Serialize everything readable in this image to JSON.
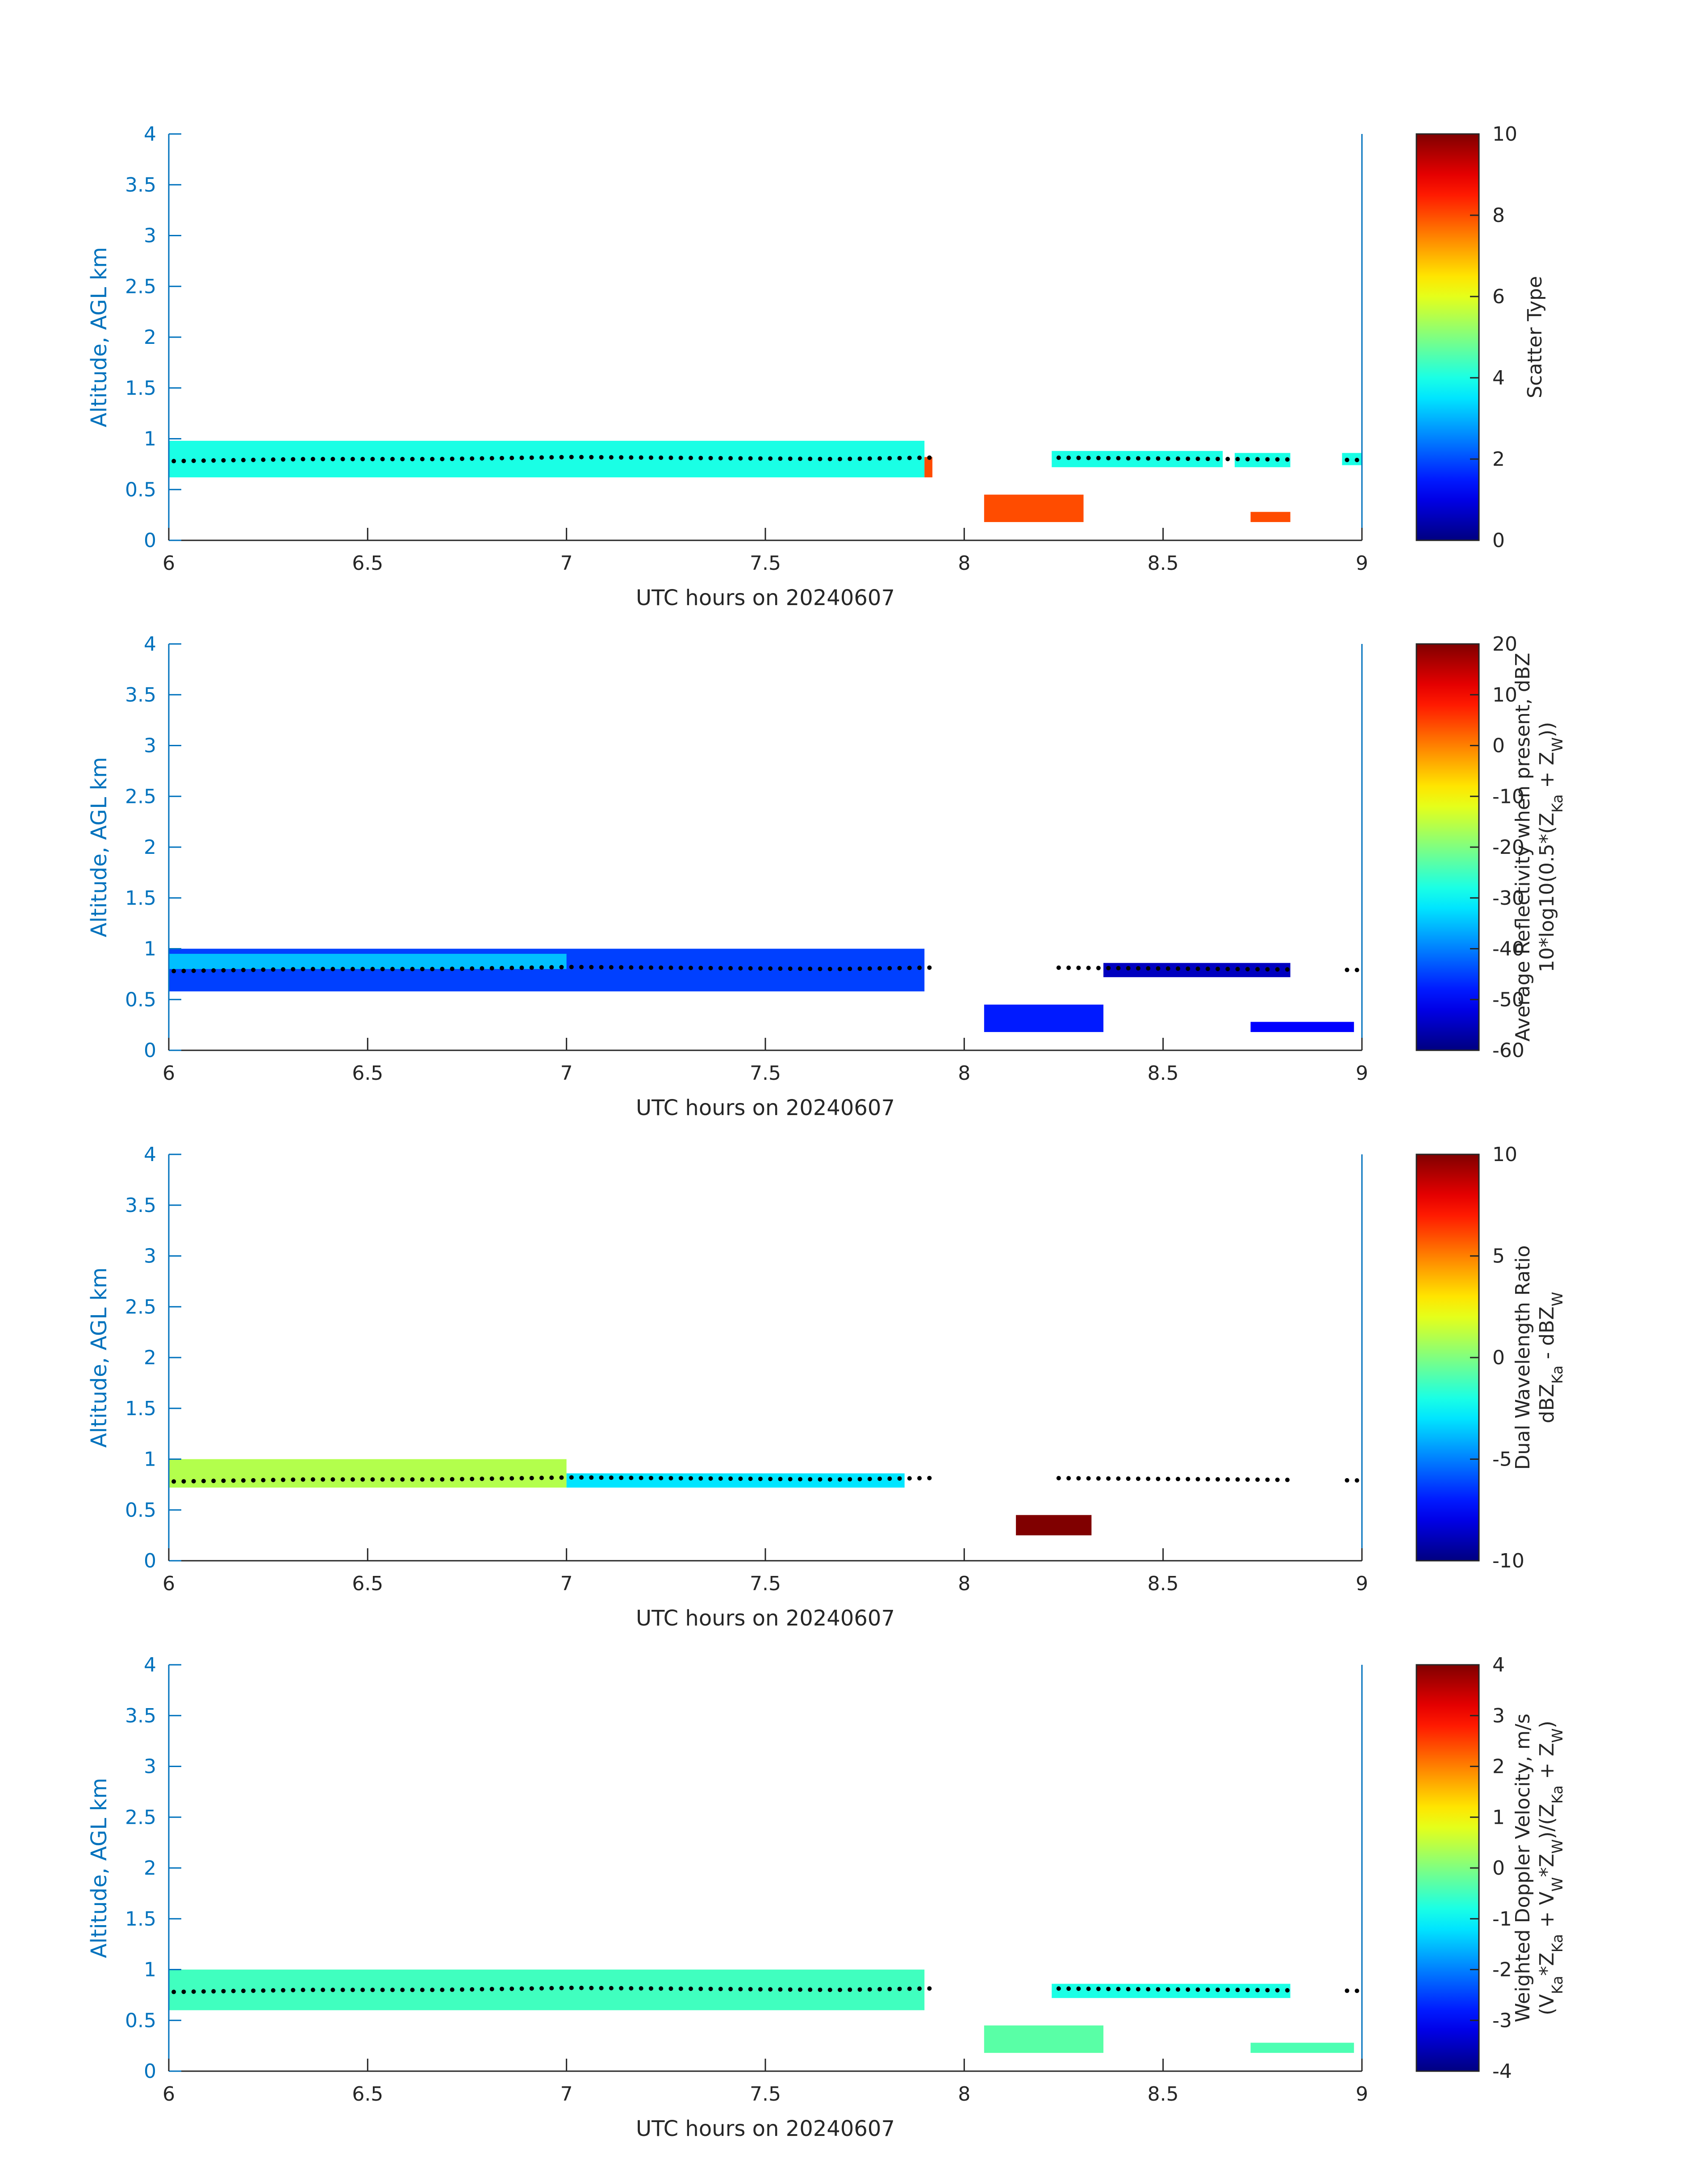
{
  "figure": {
    "background": "#ffffff",
    "axis_color": "#0072BD",
    "text_color": "#262626",
    "marker_color": "#000000"
  },
  "chart_data": [
    {
      "type": "heatmap",
      "id": "scatter-type",
      "xlabel": "UTC hours on 20240607",
      "ylabel": "Altitude, AGL km",
      "xlim": [
        6,
        9
      ],
      "ylim": [
        0,
        4
      ],
      "xticks": [
        "6",
        "6.5",
        "7",
        "7.5",
        "8",
        "8.5",
        "9"
      ],
      "yticks": [
        "0",
        "0.5",
        "1",
        "1.5",
        "2",
        "2.5",
        "3",
        "3.5",
        "4"
      ],
      "colorbar": {
        "label_lines": [
          "Scatter Type"
        ],
        "clim": [
          0,
          10
        ],
        "ticks": [
          "0",
          "2",
          "4",
          "6",
          "8",
          "10"
        ],
        "colormap": "jet"
      },
      "cloud_base_km": [
        0.78,
        0.8,
        0.8,
        0.82,
        0.81,
        0.8,
        0.82,
        0.81,
        0.8,
        0.79
      ],
      "regions": [
        {
          "x": [
            6.0,
            7.9
          ],
          "y": [
            0.62,
            0.98
          ],
          "value": 4
        },
        {
          "x": [
            8.22,
            8.65
          ],
          "y": [
            0.72,
            0.88
          ],
          "value": 4
        },
        {
          "x": [
            8.68,
            8.82
          ],
          "y": [
            0.72,
            0.86
          ],
          "value": 4
        },
        {
          "x": [
            8.95,
            9.0
          ],
          "y": [
            0.74,
            0.86
          ],
          "value": 4
        },
        {
          "x": [
            8.05,
            8.3
          ],
          "y": [
            0.18,
            0.45
          ],
          "value": 8
        },
        {
          "x": [
            8.72,
            8.82
          ],
          "y": [
            0.18,
            0.28
          ],
          "value": 8
        },
        {
          "x": [
            7.9,
            7.92
          ],
          "y": [
            0.62,
            0.82
          ],
          "value": 8
        }
      ]
    },
    {
      "type": "heatmap",
      "id": "reflectivity",
      "xlabel": "UTC hours on 20240607",
      "ylabel": "Altitude, AGL km",
      "xlim": [
        6,
        9
      ],
      "ylim": [
        0,
        4
      ],
      "xticks": [
        "6",
        "6.5",
        "7",
        "7.5",
        "8",
        "8.5",
        "9"
      ],
      "yticks": [
        "0",
        "0.5",
        "1",
        "1.5",
        "2",
        "2.5",
        "3",
        "3.5",
        "4"
      ],
      "colorbar": {
        "label_lines": [
          "Average Reflectivity when present, dBZ",
          "10*log10(0.5*(Z_Ka + Z_W))"
        ],
        "clim": [
          -60,
          20
        ],
        "ticks": [
          "-60",
          "-50",
          "-40",
          "-30",
          "-20",
          "-10",
          "0",
          "10",
          "20"
        ],
        "colormap": "jet"
      },
      "cloud_base_km": [
        0.78,
        0.8,
        0.8,
        0.82,
        0.81,
        0.8,
        0.82,
        0.81,
        0.8,
        0.79
      ],
      "regions": [
        {
          "x": [
            6.0,
            7.9
          ],
          "y": [
            0.58,
            1.0
          ],
          "value": -45
        },
        {
          "x": [
            6.0,
            7.0
          ],
          "y": [
            0.8,
            0.95
          ],
          "value": -35
        },
        {
          "x": [
            8.05,
            8.35
          ],
          "y": [
            0.18,
            0.45
          ],
          "value": -48
        },
        {
          "x": [
            8.35,
            8.82
          ],
          "y": [
            0.72,
            0.86
          ],
          "value": -55
        },
        {
          "x": [
            8.72,
            8.98
          ],
          "y": [
            0.18,
            0.28
          ],
          "value": -50
        }
      ]
    },
    {
      "type": "heatmap",
      "id": "dual-wavelength-ratio",
      "xlabel": "UTC hours on 20240607",
      "ylabel": "Altitude, AGL km",
      "xlim": [
        6,
        9
      ],
      "ylim": [
        0,
        4
      ],
      "xticks": [
        "6",
        "6.5",
        "7",
        "7.5",
        "8",
        "8.5",
        "9"
      ],
      "yticks": [
        "0",
        "0.5",
        "1",
        "1.5",
        "2",
        "2.5",
        "3",
        "3.5",
        "4"
      ],
      "colorbar": {
        "label_lines": [
          "Dual Wavelength Ratio",
          "dBZ_Ka - dBZ_W"
        ],
        "clim": [
          -10,
          10
        ],
        "ticks": [
          "-10",
          "-5",
          "0",
          "5",
          "10"
        ],
        "colormap": "jet"
      },
      "cloud_base_km": [
        0.78,
        0.8,
        0.8,
        0.82,
        0.81,
        0.8,
        0.82,
        0.81,
        0.8,
        0.79
      ],
      "regions": [
        {
          "x": [
            6.0,
            7.0
          ],
          "y": [
            0.72,
            1.0
          ],
          "value": 1
        },
        {
          "x": [
            7.0,
            7.85
          ],
          "y": [
            0.72,
            0.86
          ],
          "value": -3
        },
        {
          "x": [
            8.13,
            8.32
          ],
          "y": [
            0.25,
            0.45
          ],
          "value": 10
        }
      ]
    },
    {
      "type": "heatmap",
      "id": "doppler-velocity",
      "xlabel": "UTC hours on 20240607",
      "ylabel": "Altitude, AGL km",
      "xlim": [
        6,
        9
      ],
      "ylim": [
        0,
        4
      ],
      "xticks": [
        "6",
        "6.5",
        "7",
        "7.5",
        "8",
        "8.5",
        "9"
      ],
      "yticks": [
        "0",
        "0.5",
        "1",
        "1.5",
        "2",
        "2.5",
        "3",
        "3.5",
        "4"
      ],
      "colorbar": {
        "label_lines": [
          "Weighted Doppler Velocity, m/s",
          "(V_Ka*Z_Ka + V_W*Z_W)/(Z_Ka + Z_W)"
        ],
        "clim": [
          -4,
          4
        ],
        "ticks": [
          "-4",
          "-3",
          "-2",
          "-1",
          "0",
          "1",
          "2",
          "3",
          "4"
        ],
        "colormap": "jet"
      },
      "cloud_base_km": [
        0.78,
        0.8,
        0.8,
        0.82,
        0.81,
        0.8,
        0.82,
        0.81,
        0.8,
        0.79
      ],
      "regions": [
        {
          "x": [
            6.0,
            7.9
          ],
          "y": [
            0.6,
            1.0
          ],
          "value": -0.5
        },
        {
          "x": [
            8.05,
            8.35
          ],
          "y": [
            0.18,
            0.45
          ],
          "value": -0.3
        },
        {
          "x": [
            8.22,
            8.82
          ],
          "y": [
            0.72,
            0.86
          ],
          "value": -0.8
        },
        {
          "x": [
            8.72,
            8.98
          ],
          "y": [
            0.18,
            0.28
          ],
          "value": -0.4
        }
      ]
    }
  ]
}
